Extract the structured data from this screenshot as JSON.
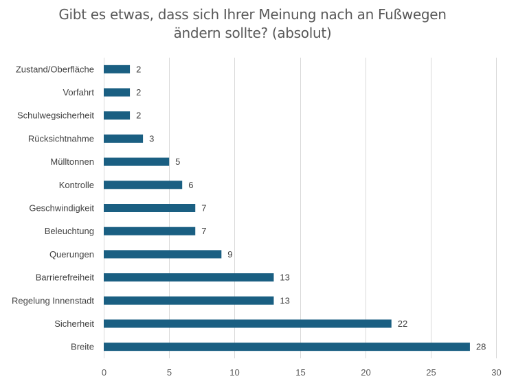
{
  "chart_data": {
    "type": "bar",
    "orientation": "horizontal",
    "title_line1": "Gibt es etwas, dass sich Ihrer Meinung nach an Fußwegen",
    "title_line2": "ändern sollte? (absolut)",
    "categories": [
      "Zustand/Oberfläche",
      "Vorfahrt",
      "Schulwegsicherheit",
      "Rücksichtnahme",
      "Mülltonnen",
      "Kontrolle",
      "Geschwindigkeit",
      "Beleuchtung",
      "Querungen",
      "Barrierefreiheit",
      "Regelung Innenstadt",
      "Sicherheit",
      "Breite"
    ],
    "values": [
      2,
      2,
      2,
      3,
      5,
      6,
      7,
      7,
      9,
      13,
      13,
      22,
      28
    ],
    "xlim": [
      0,
      30
    ],
    "xticks": [
      0,
      5,
      10,
      15,
      20,
      25,
      30
    ],
    "xlabel": "",
    "ylabel": "",
    "grid": true,
    "data_labels": true,
    "bar_color": "#1a5f82",
    "grid_color": "#d9d9d9"
  }
}
